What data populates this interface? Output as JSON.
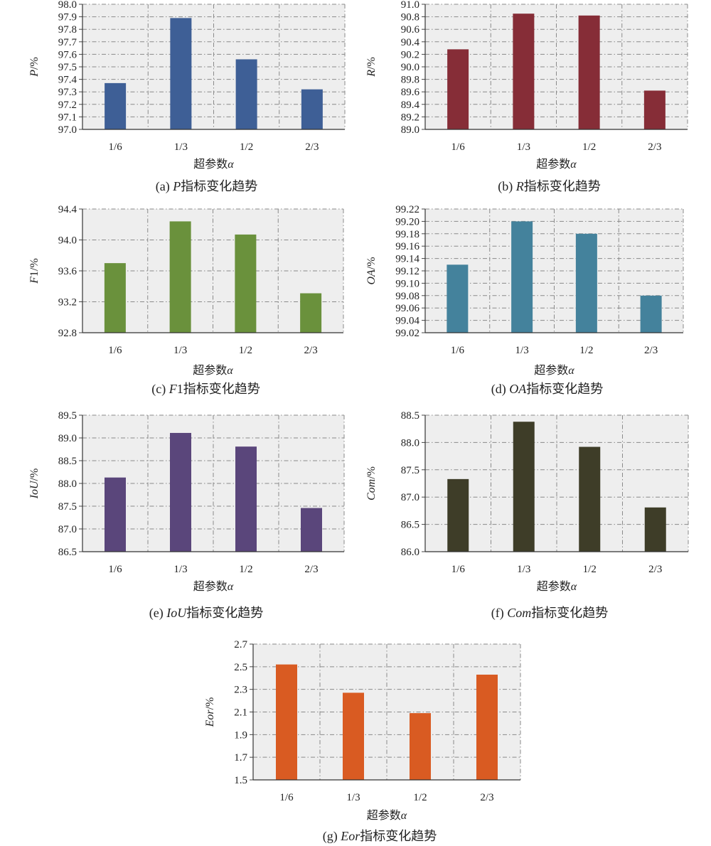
{
  "chart_data": [
    {
      "type": "bar",
      "categories": [
        "1/6",
        "1/3",
        "1/2",
        "2/3"
      ],
      "values": [
        97.37,
        97.89,
        97.56,
        97.32
      ],
      "ylim": [
        97.0,
        98.0
      ],
      "yticks": [
        "97.0",
        "97.1",
        "97.2",
        "97.3",
        "97.4",
        "97.5",
        "97.6",
        "97.7",
        "97.8",
        "97.9",
        "98.0"
      ],
      "ylabel": "P/%",
      "xlabel": "超参数α",
      "caption": "(a) P指标变化趋势",
      "color": "#3e5f96",
      "grid": true
    },
    {
      "type": "bar",
      "categories": [
        "1/6",
        "1/3",
        "1/2",
        "2/3"
      ],
      "values": [
        90.28,
        90.85,
        90.82,
        89.62
      ],
      "ylim": [
        89.0,
        91.0
      ],
      "yticks": [
        "89.0",
        "89.2",
        "89.4",
        "89.6",
        "89.8",
        "90.0",
        "90.2",
        "90.4",
        "90.6",
        "90.8",
        "91.0"
      ],
      "ylabel": "R/%",
      "xlabel": "超参数α",
      "caption": "(b) R指标变化趋势",
      "color": "#862d37",
      "grid": true
    },
    {
      "type": "bar",
      "categories": [
        "1/6",
        "1/3",
        "1/2",
        "2/3"
      ],
      "values": [
        93.7,
        94.24,
        94.07,
        93.31
      ],
      "ylim": [
        92.8,
        94.4
      ],
      "yticks": [
        "92.8",
        "93.2",
        "93.6",
        "94.0",
        "94.4"
      ],
      "ylabel": "F1/%",
      "xlabel": "超参数α",
      "caption": "(c) F1指标变化趋势",
      "color": "#6a913c",
      "grid": true
    },
    {
      "type": "bar",
      "categories": [
        "1/6",
        "1/3",
        "1/2",
        "2/3"
      ],
      "values": [
        99.13,
        99.2,
        99.18,
        99.08
      ],
      "ylim": [
        99.02,
        99.22
      ],
      "yticks": [
        "99.02",
        "99.04",
        "99.06",
        "99.08",
        "99.10",
        "99.12",
        "99.14",
        "99.16",
        "99.18",
        "99.20",
        "99.22"
      ],
      "ylabel": "OA/%",
      "xlabel": "超参数α",
      "caption": "(d) OA指标变化趋势",
      "color": "#44829c",
      "grid": true
    },
    {
      "type": "bar",
      "categories": [
        "1/6",
        "1/3",
        "1/2",
        "2/3"
      ],
      "values": [
        88.13,
        89.11,
        88.81,
        87.46
      ],
      "ylim": [
        86.5,
        89.5
      ],
      "yticks": [
        "86.5",
        "87.0",
        "87.5",
        "88.0",
        "88.5",
        "89.0",
        "89.5"
      ],
      "ylabel": "IoU/%",
      "xlabel": "超参数α",
      "caption": "(e) IoU指标变化趋势",
      "color": "#5a467b",
      "grid": true
    },
    {
      "type": "bar",
      "categories": [
        "1/6",
        "1/3",
        "1/2",
        "2/3"
      ],
      "values": [
        87.33,
        88.38,
        87.92,
        86.81
      ],
      "ylim": [
        86.0,
        88.5
      ],
      "yticks": [
        "86.0",
        "86.5",
        "87.0",
        "87.5",
        "88.0",
        "88.5"
      ],
      "ylabel": "Com/%",
      "xlabel": "超参数α",
      "caption": "(f) Com指标变化趋势",
      "color": "#3e3d28",
      "grid": true
    },
    {
      "type": "bar",
      "categories": [
        "1/6",
        "1/3",
        "1/2",
        "2/3"
      ],
      "values": [
        2.52,
        2.27,
        2.09,
        2.43
      ],
      "ylim": [
        1.5,
        2.7
      ],
      "yticks": [
        "1.5",
        "1.7",
        "1.9",
        "2.1",
        "2.3",
        "2.5",
        "2.7"
      ],
      "ylabel": "Eor/%",
      "xlabel": "超参数α",
      "caption": "(g) Eor指标变化趋势",
      "color": "#d95b22",
      "grid": true
    }
  ]
}
